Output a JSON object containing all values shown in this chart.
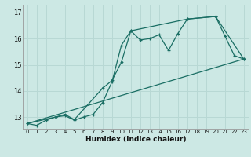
{
  "xlabel": "Humidex (Indice chaleur)",
  "bg_color": "#cce8e4",
  "line_color": "#1a6e64",
  "grid_color": "#b8d8d4",
  "xlim": [
    -0.5,
    23.5
  ],
  "ylim": [
    12.55,
    17.3
  ],
  "xticks": [
    0,
    1,
    2,
    3,
    4,
    5,
    6,
    7,
    8,
    9,
    10,
    11,
    12,
    13,
    14,
    15,
    16,
    17,
    18,
    19,
    20,
    21,
    22,
    23
  ],
  "yticks": [
    13,
    14,
    15,
    16,
    17
  ],
  "line1_x": [
    0,
    1,
    2,
    3,
    4,
    5,
    6,
    7,
    8,
    9,
    10,
    11,
    12,
    13,
    14,
    15,
    16,
    17,
    20,
    21,
    22,
    23
  ],
  "line1_y": [
    12.75,
    12.68,
    12.88,
    13.0,
    13.05,
    12.88,
    13.0,
    13.1,
    13.55,
    14.35,
    15.75,
    16.3,
    15.95,
    16.0,
    16.15,
    15.55,
    16.2,
    16.75,
    16.85,
    16.1,
    15.35,
    15.22
  ],
  "line2_x": [
    0,
    3,
    4,
    5,
    8,
    9,
    10,
    11,
    17,
    20,
    23
  ],
  "line2_y": [
    12.75,
    13.0,
    13.1,
    12.9,
    14.1,
    14.4,
    15.1,
    16.3,
    16.75,
    16.85,
    15.22
  ],
  "line3_x": [
    0,
    23
  ],
  "line3_y": [
    12.75,
    15.22
  ]
}
